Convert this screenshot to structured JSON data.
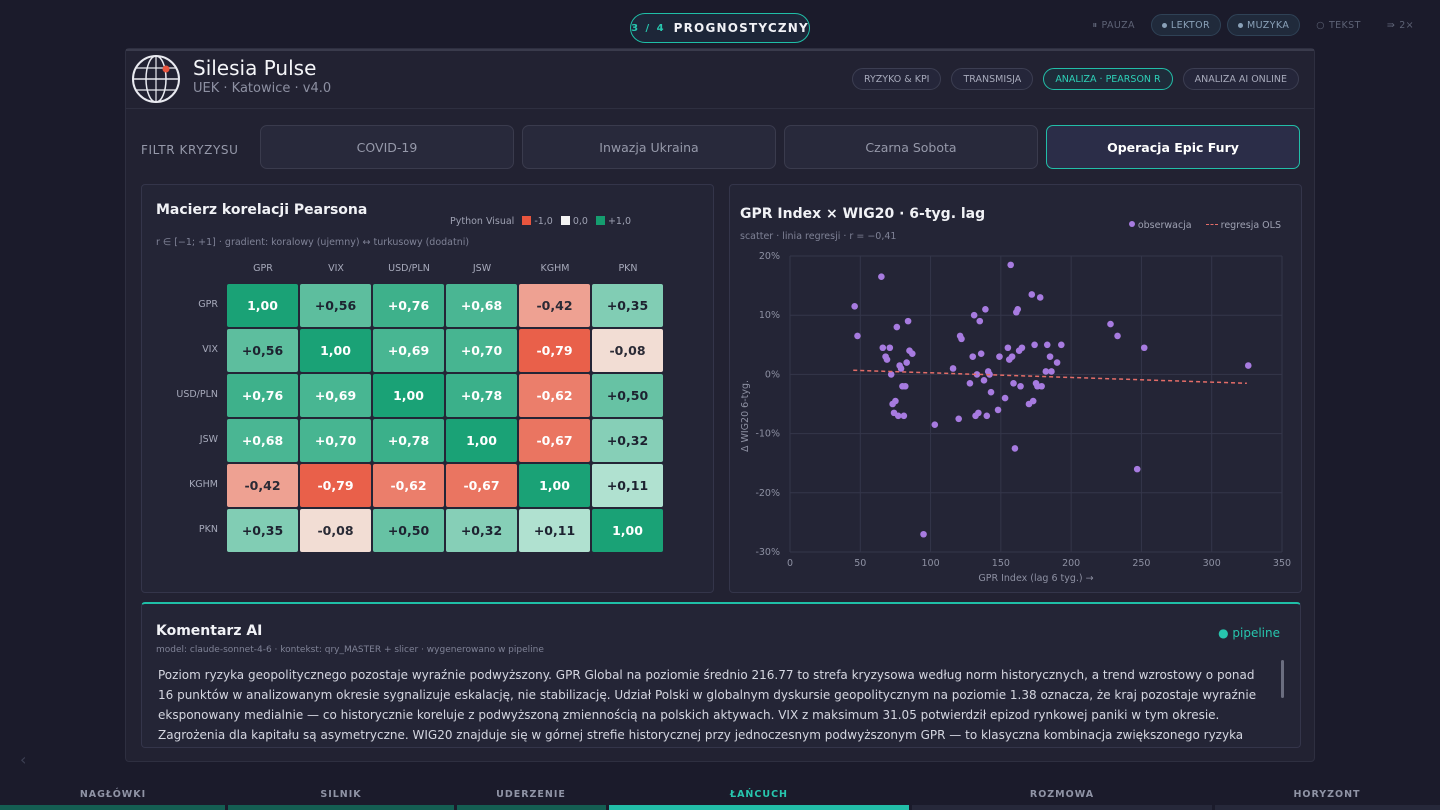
{
  "step": {
    "num": "3 / 4",
    "label": "PROGNOSTYCZNY"
  },
  "top_controls": [
    {
      "label": "PAUZA",
      "icon": "pause-icon",
      "active": false
    },
    {
      "label": "LEKTOR",
      "icon": "dot-icon",
      "active": true
    },
    {
      "label": "MUZYKA",
      "icon": "dot-icon",
      "active": true
    },
    {
      "label": "TEKST",
      "icon": "circle-icon",
      "active": false
    },
    {
      "label": "2×",
      "icon": "speed-icon",
      "active": false
    }
  ],
  "brand": {
    "title": "Silesia Pulse",
    "subtitle": "UEK · Katowice · v4.0"
  },
  "nav_tabs": [
    "RYZYKO & KPI",
    "TRANSMISJA",
    "ANALIZA · PEARSON R",
    "ANALIZA AI ONLINE"
  ],
  "nav_active": 2,
  "filter": {
    "label": "FILTR KRYZYSU",
    "options": [
      "COVID-19",
      "Inwazja Ukraina",
      "Czarna Sobota",
      "Operacja Epic Fury"
    ],
    "active": 3
  },
  "heatmap": {
    "title": "Macierz korelacji Pearsona",
    "subtitle": "r ∈ [−1; +1] · gradient: koralowy (ujemny) ↔ turkusowy (dodatni)",
    "legend_title": "Python Visual",
    "legend": [
      {
        "label": "-1,0",
        "color": "#e8553e"
      },
      {
        "label": "0,0",
        "color": "#f3f3f3"
      },
      {
        "label": "+1,0",
        "color": "#159d6f"
      }
    ],
    "labels": [
      "GPR",
      "VIX",
      "USD/PLN",
      "JSW",
      "KGHM",
      "PKN"
    ],
    "values": [
      [
        1.0,
        0.56,
        0.76,
        0.68,
        -0.42,
        0.35
      ],
      [
        0.56,
        1.0,
        0.69,
        0.7,
        -0.79,
        -0.08
      ],
      [
        0.76,
        0.69,
        1.0,
        0.78,
        -0.62,
        0.5
      ],
      [
        0.68,
        0.7,
        0.78,
        1.0,
        -0.67,
        0.32
      ],
      [
        -0.42,
        -0.79,
        -0.62,
        -0.67,
        1.0,
        0.11
      ],
      [
        0.35,
        -0.08,
        0.5,
        0.32,
        0.11,
        1.0
      ]
    ]
  },
  "scatter": {
    "title": "GPR Index × WIG20 · 6-tyg. lag",
    "subtitle": "scatter · linia regresji · r = −0,41",
    "legend_points": "obserwacja",
    "legend_line": "regresja OLS",
    "xlabel": "GPR Index (lag 6 tyg.) →",
    "ylabel": "Δ WIG20 6-tyg.",
    "x_ticks": [
      "0",
      "50",
      "100",
      "150",
      "200",
      "250",
      "300",
      "350"
    ],
    "y_ticks": [
      "20%",
      "10%",
      "0%",
      "-10%",
      "-20%",
      "-30%"
    ]
  },
  "chart_data": {
    "type": "scatter",
    "title": "GPR Index × WIG20 · 6-tyg. lag",
    "xlabel": "GPR Index (lag 6 tyg.) →",
    "ylabel": "Δ WIG20 6-tyg.",
    "xlim": [
      0,
      350
    ],
    "ylim": [
      -30,
      20
    ],
    "grid": true,
    "legend": "top-right",
    "series": [
      {
        "name": "obserwacja",
        "color": "#a77be0",
        "points": [
          [
            46,
            11.5
          ],
          [
            48,
            6.5
          ],
          [
            65,
            16.5
          ],
          [
            66,
            4.5
          ],
          [
            68,
            3
          ],
          [
            69,
            2.5
          ],
          [
            71,
            4.5
          ],
          [
            72,
            0
          ],
          [
            73,
            -5
          ],
          [
            74,
            -6.5
          ],
          [
            75,
            -4.5
          ],
          [
            76,
            8
          ],
          [
            77,
            -7
          ],
          [
            78,
            1.5
          ],
          [
            79,
            1
          ],
          [
            80,
            -2
          ],
          [
            81,
            -7
          ],
          [
            82,
            -2
          ],
          [
            83,
            2
          ],
          [
            84,
            9
          ],
          [
            85,
            4
          ],
          [
            87,
            3.5
          ],
          [
            95,
            -27
          ],
          [
            103,
            -8.5
          ],
          [
            116,
            1
          ],
          [
            120,
            -7.5
          ],
          [
            121,
            6.5
          ],
          [
            122,
            6
          ],
          [
            128,
            -1.5
          ],
          [
            130,
            3
          ],
          [
            131,
            10
          ],
          [
            132,
            -7
          ],
          [
            133,
            0
          ],
          [
            134,
            -6.5
          ],
          [
            135,
            9
          ],
          [
            136,
            3.5
          ],
          [
            138,
            -1
          ],
          [
            139,
            11
          ],
          [
            140,
            -7
          ],
          [
            141,
            0.5
          ],
          [
            142,
            0
          ],
          [
            143,
            -3
          ],
          [
            148,
            -6
          ],
          [
            149,
            3
          ],
          [
            153,
            -4
          ],
          [
            155,
            4.5
          ],
          [
            156,
            2.5
          ],
          [
            157,
            18.5
          ],
          [
            158,
            3
          ],
          [
            159,
            -1.5
          ],
          [
            160,
            -12.5
          ],
          [
            161,
            10.5
          ],
          [
            162,
            11
          ],
          [
            163,
            4
          ],
          [
            164,
            -2
          ],
          [
            165,
            4.5
          ],
          [
            170,
            -5
          ],
          [
            172,
            13.5
          ],
          [
            173,
            -4.5
          ],
          [
            174,
            5
          ],
          [
            175,
            -1.5
          ],
          [
            176,
            -2
          ],
          [
            178,
            13
          ],
          [
            179,
            -2
          ],
          [
            182,
            0.5
          ],
          [
            183,
            5
          ],
          [
            185,
            3
          ],
          [
            186,
            0.5
          ],
          [
            190,
            2
          ],
          [
            193,
            5
          ],
          [
            228,
            8.5
          ],
          [
            233,
            6.5
          ],
          [
            247,
            -16
          ],
          [
            252,
            4.5
          ],
          [
            326,
            1.5
          ]
        ]
      }
    ],
    "regression": {
      "name": "regresja OLS",
      "color": "#e46d68",
      "x": [
        45,
        325
      ],
      "y": [
        0.7,
        -1.5
      ]
    }
  },
  "ai": {
    "title": "Komentarz AI",
    "meta": "model: claude-sonnet-4-6 · kontekst: qry_MASTER + slicer · wygenerowano w pipeline",
    "status": "pipeline",
    "text": "Poziom ryzyka geopolitycznego pozostaje wyraźnie podwyższony. GPR Global na poziomie średnio 216.77 to strefa kryzysowa według norm historycznych, a trend wzrostowy o ponad 16 punktów w analizowanym okresie sygnalizuje eskalację, nie stabilizację. Udział Polski w globalnym dyskursie geopolitycznym na poziomie 1.38 oznacza, że kraj pozostaje wyraźnie eksponowany medialnie — co historycznie koreluje z podwyższoną zmiennością na polskich aktywach. VIX z maksimum 31.05 potwierdził epizod rynkowej paniki w tym okresie. Zagrożenia dla kapitału są asymetryczne. WIG20 znajduje się w górnej strefie historycznej przy jednoczesnym podwyższonym GPR — to klasyczna kombinacja zwiększonego ryzyka korekty. PKN Orlen blisko historycznych maksimów przy rosnącym ryzyku geopolitycznym i presji na"
  },
  "bottom_nav": {
    "items": [
      "NAGŁÓWKI",
      "SILNIK",
      "UDERZENIE",
      "ŁAŃCUCH",
      "ROZMOWA",
      "HORYZONT"
    ],
    "active": 3
  },
  "colors": {
    "accent": "#1fbfa7",
    "negative": "#e8553e",
    "positive": "#159d6f"
  }
}
